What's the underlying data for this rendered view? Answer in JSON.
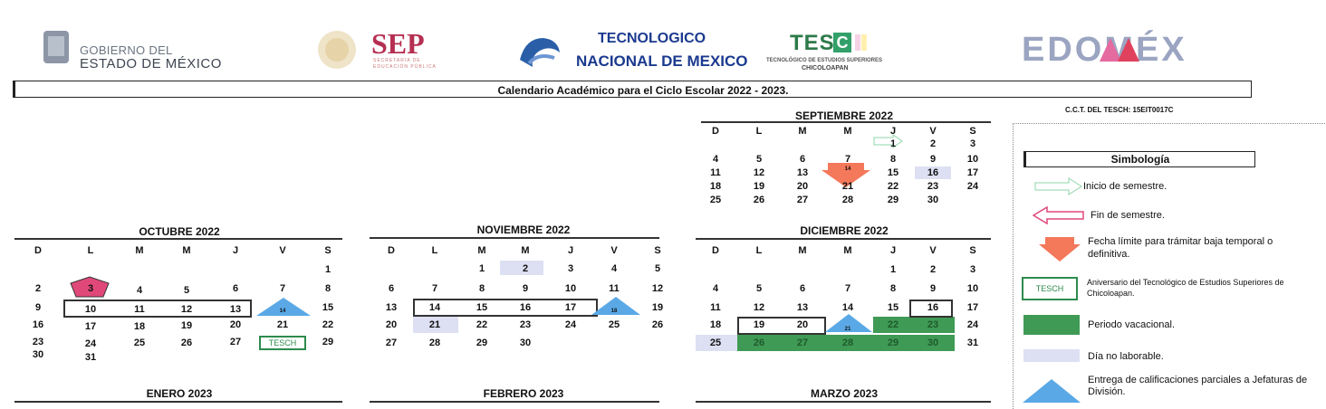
{
  "header": {
    "gob_line1": "GOBIERNO DEL",
    "gob_line2": "ESTADO DE MÉXICO",
    "sep": "SEP",
    "sep_sub1": "SECRETARÍA DE",
    "sep_sub2": "EDUCACIÓN PÚBLICA",
    "tecnm_line1": "TECNOLOGICO",
    "tecnm_line2": "NACIONAL DE MEXICO",
    "tes": "TES",
    "tes_letter": "C",
    "tes_sub1": "TECNOLÓGICO DE ESTUDIOS SUPERIORES",
    "tes_sub2": "CHICOLOAPAN",
    "edomex": "EDOMÉX"
  },
  "title": "Calendario Académico para el Ciclo Escolar 2022 - 2023.",
  "cct": "C.C.T. DEL TESCH: 15EIT0017C",
  "weekdays": [
    "D",
    "L",
    "M",
    "M",
    "J",
    "V",
    "S"
  ],
  "months": {
    "septiembre": {
      "title": "SEPTIEMBRE 2022",
      "rows": [
        [
          "",
          "",
          "",
          "",
          "1",
          "2",
          "3"
        ],
        [
          "4",
          "5",
          "6",
          "7",
          "8",
          "9",
          "10"
        ],
        [
          "11",
          "12",
          "13",
          "14",
          "15",
          "16",
          "17"
        ],
        [
          "18",
          "19",
          "20",
          "21",
          "22",
          "23",
          "24"
        ],
        [
          "25",
          "26",
          "27",
          "28",
          "29",
          "30",
          ""
        ]
      ]
    },
    "octubre": {
      "title": "OCTUBRE 2022",
      "rows": [
        [
          "",
          "",
          "",
          "",
          "",
          "",
          "1"
        ],
        [
          "2",
          "3",
          "4",
          "5",
          "6",
          "7",
          "8"
        ],
        [
          "9",
          "10",
          "11",
          "12",
          "13",
          "14",
          "15"
        ],
        [
          "16",
          "17",
          "18",
          "19",
          "20",
          "21",
          "22"
        ],
        [
          "23",
          "24",
          "25",
          "26",
          "27",
          "TESCH",
          "29"
        ],
        [
          "30",
          "31",
          "",
          "",
          "",
          "",
          ""
        ]
      ]
    },
    "noviembre": {
      "title": "NOVIEMBRE 2022",
      "rows": [
        [
          "",
          "",
          "1",
          "2",
          "3",
          "4",
          "5"
        ],
        [
          "6",
          "7",
          "8",
          "9",
          "10",
          "11",
          "12"
        ],
        [
          "13",
          "14",
          "15",
          "16",
          "17",
          "18",
          "19"
        ],
        [
          "20",
          "21",
          "22",
          "23",
          "24",
          "25",
          "26"
        ],
        [
          "27",
          "28",
          "29",
          "30",
          "",
          "",
          ""
        ]
      ]
    },
    "diciembre": {
      "title": "DICIEMBRE 2022",
      "rows": [
        [
          "",
          "",
          "",
          "",
          "1",
          "2",
          "3"
        ],
        [
          "4",
          "5",
          "6",
          "7",
          "8",
          "9",
          "10"
        ],
        [
          "11",
          "12",
          "13",
          "14",
          "15",
          "16",
          "17"
        ],
        [
          "18",
          "19",
          "20",
          "21",
          "22",
          "23",
          "24"
        ],
        [
          "25",
          "26",
          "27",
          "28",
          "29",
          "30",
          "31"
        ]
      ]
    },
    "enero": {
      "title": "ENERO 2023"
    },
    "febrero": {
      "title": "FEBRERO 2023"
    },
    "marzo": {
      "title": "MARZO 2023"
    }
  },
  "legend": {
    "title": "Simbología",
    "items": [
      {
        "label": "Inicio de semestre."
      },
      {
        "label": "Fin de semestre."
      },
      {
        "label": "Fecha límite para trámitar baja temporal o definitiva."
      },
      {
        "label": "Aniversario del Tecnológico de Estudios Superiores de Chicoloapan.",
        "box": "TESCH"
      },
      {
        "label": "Periodo vacacional."
      },
      {
        "label": "Día no laborable."
      },
      {
        "label": "Entrega de calificaciones parciales a Jefaturas de División."
      }
    ]
  },
  "colors": {
    "vacation": "#3f9a55",
    "nonworking": "#dde0f2",
    "deadline": "#f4785a",
    "grades": "#5aa9e6",
    "anniversary": "#2d8b4d"
  }
}
